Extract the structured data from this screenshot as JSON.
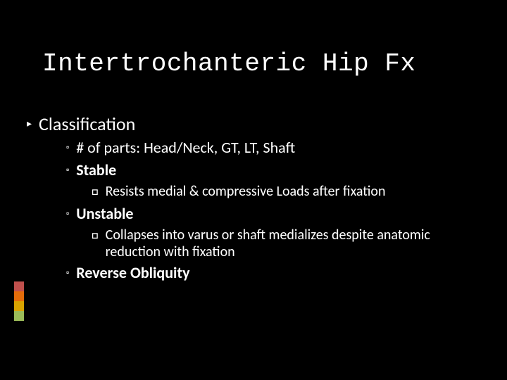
{
  "slide": {
    "background_color": "#000000",
    "text_color": "#ffffff",
    "title": {
      "text": "Intertrochanteric Hip Fx",
      "font_family": "Courier New, monospace",
      "font_size_pt": 28,
      "font_weight": 400
    },
    "accent_colors": [
      "#c0504d",
      "#e46c0a",
      "#d9a300",
      "#9bbb59"
    ],
    "bullet_glyph_l1": "▸",
    "bullet_glyph_l2": "▫",
    "bullet_glyph_l3": "□",
    "body_font_family": "Segoe UI, Candara, sans-serif",
    "items": {
      "classification": "Classification",
      "parts": "# of parts: Head/Neck, GT, LT, Shaft",
      "stable": "Stable",
      "stable_desc": "Resists medial & compressive Loads after fixation",
      "unstable": "Unstable",
      "unstable_desc": "Collapses into varus or shaft medializes despite anatomic reduction with fixation",
      "reverse": "Reverse Obliquity"
    }
  }
}
